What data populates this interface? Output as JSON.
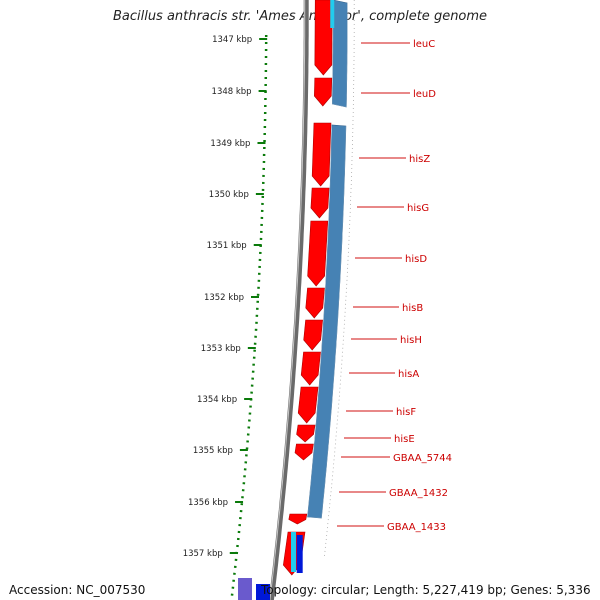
{
  "title": "Bacillus anthracis str. 'Ames Ancestor', complete genome",
  "accession": "Accession: NC_007530",
  "topology": "Topology: circular; Length: 5,227,419 bp; Genes: 5,336",
  "ruler": [
    "1347 kbp",
    "1348 kbp",
    "1349 kbp",
    "1350 kbp",
    "1351 kbp",
    "1352 kbp",
    "1353 kbp",
    "1354 kbp",
    "1355 kbp",
    "1356 kbp",
    "1357 kbp"
  ],
  "genes": [
    {
      "name": "leuC"
    },
    {
      "name": "leuD"
    },
    {
      "name": "hisZ"
    },
    {
      "name": "hisG"
    },
    {
      "name": "hisD"
    },
    {
      "name": "hisB"
    },
    {
      "name": "hisH"
    },
    {
      "name": "hisA"
    },
    {
      "name": "hisF"
    },
    {
      "name": "hisE"
    },
    {
      "name": "GBAA_5744"
    },
    {
      "name": "GBAA_1432"
    },
    {
      "name": "GBAA_1433"
    }
  ],
  "colors": {
    "forward_gene": "#ff0000",
    "reverse_gene": "#4682b4",
    "label": "#cc0000",
    "ruler": "#0a7a0a",
    "backbone": "#808080"
  }
}
